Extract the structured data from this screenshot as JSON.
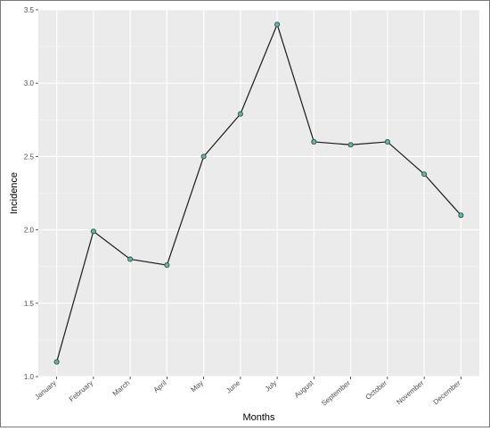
{
  "chart_data": {
    "type": "line",
    "title": "",
    "xlabel": "Months",
    "ylabel": "Incidence",
    "categories": [
      "January",
      "February",
      "March",
      "April",
      "May",
      "June",
      "July",
      "August",
      "September",
      "October",
      "November",
      "December"
    ],
    "values": [
      1.1,
      1.99,
      1.8,
      1.76,
      2.5,
      2.79,
      3.4,
      2.6,
      2.58,
      2.6,
      2.38,
      2.1
    ],
    "ylim": [
      1.0,
      3.5
    ],
    "yticks": [
      1.0,
      1.5,
      2.0,
      2.5,
      3.0,
      3.5
    ],
    "ytick_labels": [
      "1.0",
      "1.5",
      "2.0",
      "2.5",
      "3.0",
      "3.5"
    ],
    "grid": true,
    "legend": "none",
    "colors": {
      "panel": "#ebebeb",
      "grid_major": "#ffffff",
      "grid_minor": "#f5f5f5",
      "line": "#1a1a1a",
      "point_fill": "#69b3a2",
      "point_stroke": "#2f4f4f"
    }
  }
}
